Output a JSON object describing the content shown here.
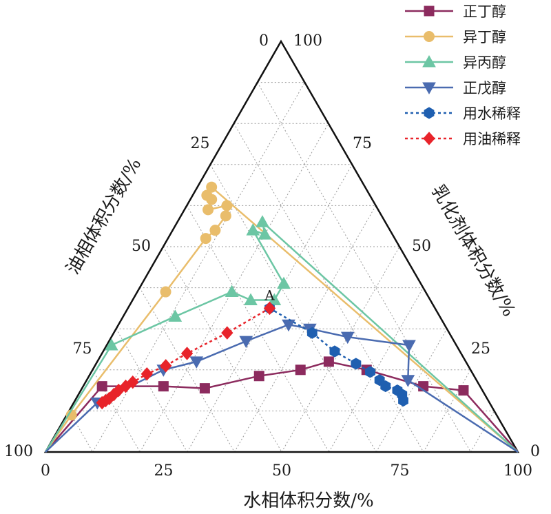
{
  "chart_data": {
    "type": "ternary-line",
    "axes": {
      "bottom": {
        "label": "水相体积分数/%",
        "ticks": [
          "0",
          "25",
          "50",
          "75",
          "100"
        ],
        "range": [
          0,
          100
        ]
      },
      "left": {
        "label": "油相体积分数/%",
        "ticks": [
          "0",
          "25",
          "50",
          "75",
          "100"
        ],
        "range": [
          0,
          100
        ]
      },
      "right": {
        "label": "乳化剂体积分数/%",
        "ticks": [
          "0",
          "25",
          "50",
          "75",
          "100"
        ],
        "range": [
          0,
          100
        ]
      }
    },
    "grid": "dotted",
    "legend_position": "top-right",
    "series": [
      {
        "name": "正丁醇",
        "color": "#8c2b5e",
        "marker": "square",
        "dash": "solid",
        "points": [
          {
            "water": 0,
            "emulsifier": 0
          },
          {
            "water": 4,
            "emulsifier": 16
          },
          {
            "water": 17,
            "emulsifier": 16
          },
          {
            "water": 26,
            "emulsifier": 15.5
          },
          {
            "water": 36,
            "emulsifier": 18.5
          },
          {
            "water": 44,
            "emulsifier": 20
          },
          {
            "water": 49,
            "emulsifier": 22
          },
          {
            "water": 58,
            "emulsifier": 20
          },
          {
            "water": 72,
            "emulsifier": 16
          },
          {
            "water": 81,
            "emulsifier": 15
          },
          {
            "water": 100,
            "emulsifier": 0
          }
        ]
      },
      {
        "name": "异丁醇",
        "color": "#e9bd6b",
        "marker": "circle",
        "dash": "solid",
        "points": [
          {
            "water": 0,
            "emulsifier": 0
          },
          {
            "water": 1,
            "emulsifier": 9
          },
          {
            "water": 6,
            "emulsifier": 39
          },
          {
            "water": 8,
            "emulsifier": 52
          },
          {
            "water": 9,
            "emulsifier": 54
          },
          {
            "water": 9.5,
            "emulsifier": 57.5
          },
          {
            "water": 8.5,
            "emulsifier": 60
          },
          {
            "water": 5,
            "emulsifier": 59
          },
          {
            "water": 4.5,
            "emulsifier": 61.5
          },
          {
            "water": 3,
            "emulsifier": 62.5
          },
          {
            "water": 3,
            "emulsifier": 64.5
          },
          {
            "water": 100,
            "emulsifier": 0
          }
        ]
      },
      {
        "name": "异丙醇",
        "color": "#6cc6a4",
        "marker": "triangle-up",
        "dash": "solid",
        "points": [
          {
            "water": 0,
            "emulsifier": 0
          },
          {
            "water": 1,
            "emulsifier": 26
          },
          {
            "water": 11,
            "emulsifier": 33
          },
          {
            "water": 20,
            "emulsifier": 39
          },
          {
            "water": 25,
            "emulsifier": 37
          },
          {
            "water": 30,
            "emulsifier": 37
          },
          {
            "water": 30,
            "emulsifier": 41
          },
          {
            "water": 17,
            "emulsifier": 54
          },
          {
            "water": 20,
            "emulsifier": 53
          },
          {
            "water": 18,
            "emulsifier": 56
          },
          {
            "water": 100,
            "emulsifier": 0
          }
        ]
      },
      {
        "name": "正戊醇",
        "color": "#4a6bb0",
        "marker": "triangle-down",
        "dash": "solid",
        "points": [
          {
            "water": 0,
            "emulsifier": 0
          },
          {
            "water": 5,
            "emulsifier": 12
          },
          {
            "water": 15,
            "emulsifier": 20
          },
          {
            "water": 21,
            "emulsifier": 22
          },
          {
            "water": 29,
            "emulsifier": 27
          },
          {
            "water": 36,
            "emulsifier": 31
          },
          {
            "water": 41,
            "emulsifier": 30
          },
          {
            "water": 50,
            "emulsifier": 28
          },
          {
            "water": 64,
            "emulsifier": 26
          },
          {
            "water": 68,
            "emulsifier": 17.5
          },
          {
            "water": 100,
            "emulsifier": 0
          }
        ]
      },
      {
        "name": "用水稀释",
        "color": "#1f5fb0",
        "marker": "hexagon",
        "dash": "dotted",
        "points": [
          {
            "water": 30,
            "emulsifier": 35
          },
          {
            "water": 42,
            "emulsifier": 29
          },
          {
            "water": 49,
            "emulsifier": 24.5
          },
          {
            "water": 55,
            "emulsifier": 21.5
          },
          {
            "water": 59,
            "emulsifier": 19.5
          },
          {
            "water": 62,
            "emulsifier": 17.5
          },
          {
            "water": 64,
            "emulsifier": 16
          },
          {
            "water": 67,
            "emulsifier": 15
          },
          {
            "water": 68.5,
            "emulsifier": 14
          },
          {
            "water": 69.5,
            "emulsifier": 12.5
          }
        ]
      },
      {
        "name": "用油稀释",
        "color": "#e8232a",
        "marker": "diamond",
        "dash": "dotted",
        "points": [
          {
            "water": 30,
            "emulsifier": 35
          },
          {
            "water": 24,
            "emulsifier": 29
          },
          {
            "water": 18,
            "emulsifier": 24
          },
          {
            "water": 15,
            "emulsifier": 21
          },
          {
            "water": 12,
            "emulsifier": 19
          },
          {
            "water": 10,
            "emulsifier": 17
          },
          {
            "water": 9,
            "emulsifier": 16
          },
          {
            "water": 8,
            "emulsifier": 15
          },
          {
            "water": 7.5,
            "emulsifier": 14
          },
          {
            "water": 7,
            "emulsifier": 13
          },
          {
            "water": 6.5,
            "emulsifier": 12.5
          },
          {
            "water": 6,
            "emulsifier": 12
          }
        ]
      }
    ],
    "annotations": [
      {
        "text": "A",
        "water": 30,
        "emulsifier": 35
      }
    ]
  }
}
